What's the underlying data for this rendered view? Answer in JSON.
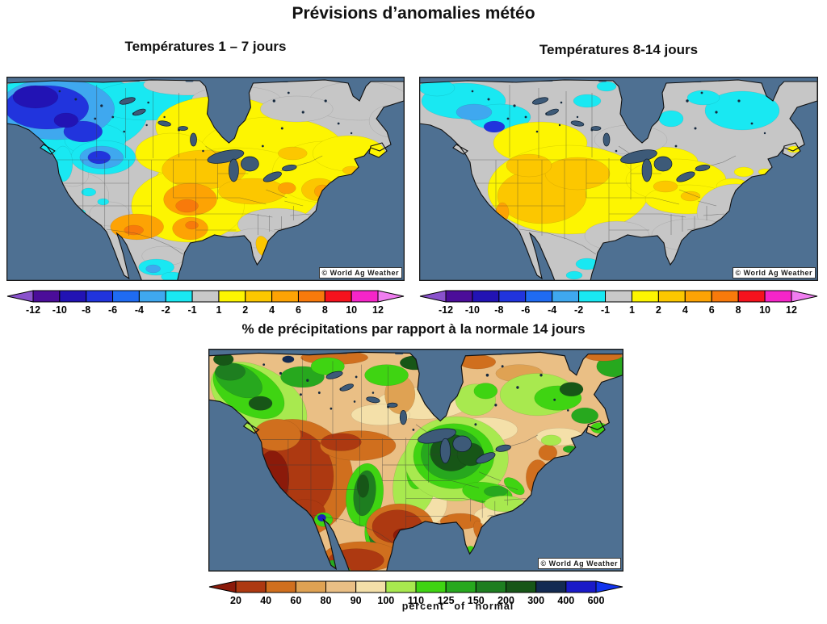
{
  "page": {
    "title": "Prévisions d’anomalies météo"
  },
  "maps": {
    "watermark": "© World Ag Weather",
    "temp_1_7": {
      "title": "Températures 1 – 7 jours"
    },
    "temp_8_14": {
      "title": "Températures 8-14 jours"
    },
    "precip_14": {
      "title": "% de précipitations par rapport à la normale 14 jours"
    }
  },
  "colorbars": {
    "temperature": {
      "labels": [
        "-12",
        "-10",
        "-8",
        "-6",
        "-4",
        "-2",
        "-1",
        "1",
        "2",
        "4",
        "6",
        "8",
        "10",
        "12"
      ],
      "segment_colors": [
        "#4b0d99",
        "#2213b4",
        "#2134dd",
        "#1f6bf2",
        "#3fa8ef",
        "#19e8f2",
        "#c8c8c8",
        "#fdf501",
        "#fcc700",
        "#fda304",
        "#f87a0b",
        "#f5121d",
        "#f525c8"
      ],
      "left_arrow_color": "#8a52cc",
      "right_arrow_color": "#f07ef0"
    },
    "precipitation": {
      "labels": [
        "20",
        "40",
        "60",
        "80",
        "90",
        "100",
        "110",
        "125",
        "150",
        "200",
        "300",
        "400",
        "600"
      ],
      "segment_colors": [
        "#ad3911",
        "#d06f1e",
        "#dfa253",
        "#eabf85",
        "#f4e0a9",
        "#a8e94f",
        "#3fd412",
        "#27a81e",
        "#1e7e20",
        "#175617",
        "#132a52",
        "#1a1ac8"
      ],
      "left_arrow_color": "#8b1a0a",
      "right_arrow_color": "#1133ee",
      "caption": "percent of normal"
    }
  },
  "palette": {
    "ocean": "#4e7092",
    "neutral_land": "#c6c6c6",
    "precip_base_land": "#eabf85"
  }
}
